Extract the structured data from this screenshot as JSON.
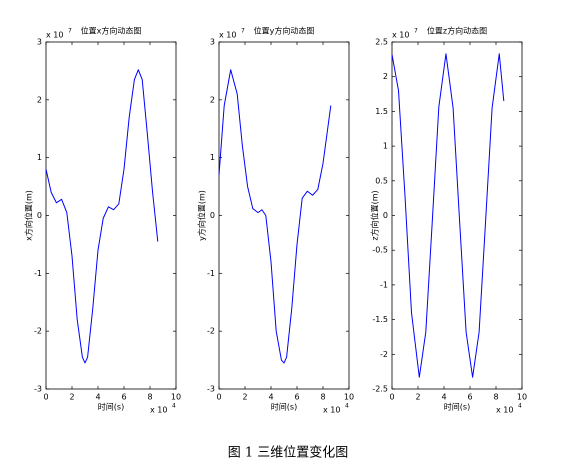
{
  "chart_data": [
    {
      "type": "line",
      "title": "位置x方向动态图",
      "xlabel": "时间(s)",
      "ylabel": "x方向位置(m)",
      "xscale_label": {
        "base": "x 10",
        "exponent": "4"
      },
      "yscale_label": {
        "base": "x 10",
        "exponent": "7"
      },
      "xlim": [
        0,
        10
      ],
      "xticks": [
        0,
        2,
        4,
        6,
        8,
        10
      ],
      "ylim": [
        -3,
        3
      ],
      "yticks": [
        -3,
        -2,
        -1,
        0,
        1,
        2,
        3
      ],
      "series": [
        {
          "color": "#0000ff",
          "x": [
            0,
            0.4,
            0.8,
            1.2,
            1.6,
            2.0,
            2.4,
            2.8,
            3.0,
            3.2,
            3.6,
            4.0,
            4.4,
            4.8,
            5.2,
            5.6,
            6.0,
            6.4,
            6.8,
            7.1,
            7.4,
            7.8,
            8.2,
            8.6
          ],
          "values": [
            0.8,
            0.4,
            0.22,
            0.28,
            0.05,
            -0.7,
            -1.8,
            -2.45,
            -2.55,
            -2.45,
            -1.6,
            -0.6,
            -0.05,
            0.15,
            0.1,
            0.2,
            0.8,
            1.7,
            2.35,
            2.52,
            2.35,
            1.4,
            0.4,
            -0.45
          ]
        }
      ]
    },
    {
      "type": "line",
      "title": "位置y方向动态图",
      "xlabel": "时间(s)",
      "ylabel": "y方向位置(m)",
      "xscale_label": {
        "base": "x 10",
        "exponent": "4"
      },
      "yscale_label": {
        "base": "x 10",
        "exponent": "7"
      },
      "xlim": [
        0,
        10
      ],
      "xticks": [
        0,
        2,
        4,
        6,
        8,
        10
      ],
      "ylim": [
        -3,
        3
      ],
      "yticks": [
        -3,
        -2,
        -1,
        0,
        1,
        2,
        3
      ],
      "series": [
        {
          "color": "#0000ff",
          "x": [
            0,
            0.4,
            0.9,
            1.4,
            1.8,
            2.2,
            2.6,
            3.0,
            3.3,
            3.6,
            4.0,
            4.4,
            4.8,
            5.0,
            5.2,
            5.6,
            6.0,
            6.4,
            6.8,
            7.2,
            7.6,
            8.0,
            8.3,
            8.6
          ],
          "values": [
            0.7,
            1.9,
            2.52,
            2.1,
            1.2,
            0.5,
            0.12,
            0.05,
            0.1,
            0.0,
            -0.8,
            -2.0,
            -2.5,
            -2.55,
            -2.45,
            -1.6,
            -0.5,
            0.3,
            0.42,
            0.35,
            0.45,
            0.9,
            1.4,
            1.9
          ]
        }
      ]
    },
    {
      "type": "line",
      "title": "位置z方向动态图",
      "xlabel": "时间(s)",
      "ylabel": "z方向位置(m)",
      "xscale_label": {
        "base": "x 10",
        "exponent": "4"
      },
      "yscale_label": {
        "base": "x 10",
        "exponent": "7"
      },
      "xlim": [
        0,
        10
      ],
      "xticks": [
        0,
        2,
        4,
        6,
        8,
        10
      ],
      "ylim": [
        -2.5,
        2.5
      ],
      "yticks": [
        -2.5,
        -2,
        -1.5,
        -1,
        -0.5,
        0,
        0.5,
        1,
        1.5,
        2,
        2.5
      ],
      "series": [
        {
          "color": "#0000ff",
          "x": [
            0,
            0.5,
            1.0,
            1.5,
            2.1,
            2.6,
            3.1,
            3.6,
            4.15,
            4.7,
            5.2,
            5.7,
            6.2,
            6.7,
            7.2,
            7.7,
            8.25,
            8.6
          ],
          "values": [
            2.32,
            1.8,
            0.28,
            -1.4,
            -2.33,
            -1.68,
            -0.08,
            1.56,
            2.33,
            1.55,
            -0.08,
            -1.68,
            -2.33,
            -1.68,
            -0.08,
            1.55,
            2.33,
            1.65
          ]
        }
      ]
    }
  ],
  "caption": "图 1  三维位置变化图"
}
